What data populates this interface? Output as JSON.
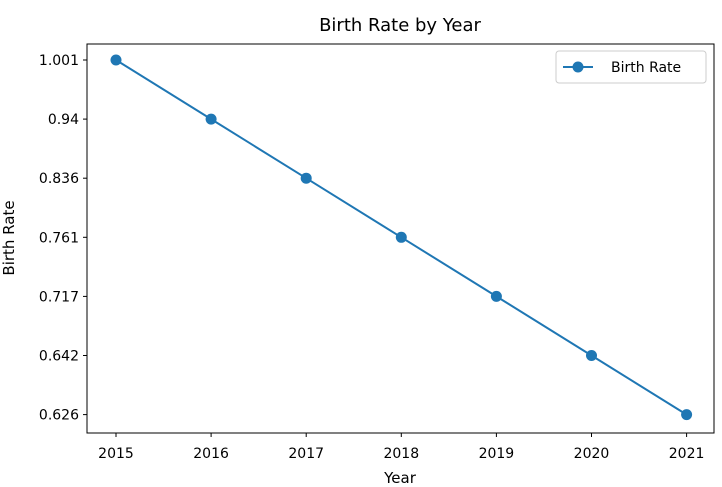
{
  "chart_data": {
    "type": "line",
    "title": "Birth Rate by Year",
    "xlabel": "Year",
    "ylabel": "Birth Rate",
    "categories": [
      "2015",
      "2016",
      "2017",
      "2018",
      "2019",
      "2020",
      "2021"
    ],
    "y_tick_labels": [
      "1.001",
      "0.94",
      "0.836",
      "0.761",
      "0.717",
      "0.642",
      "0.626"
    ],
    "series": [
      {
        "name": "Birth Rate",
        "values": [
          1.001,
          0.94,
          0.836,
          0.761,
          0.717,
          0.642,
          0.626
        ],
        "color": "#1f77b4"
      }
    ],
    "y_axis_note": "categorical y-axis; labels evenly spaced",
    "legend_position": "top-right",
    "grid": false
  }
}
